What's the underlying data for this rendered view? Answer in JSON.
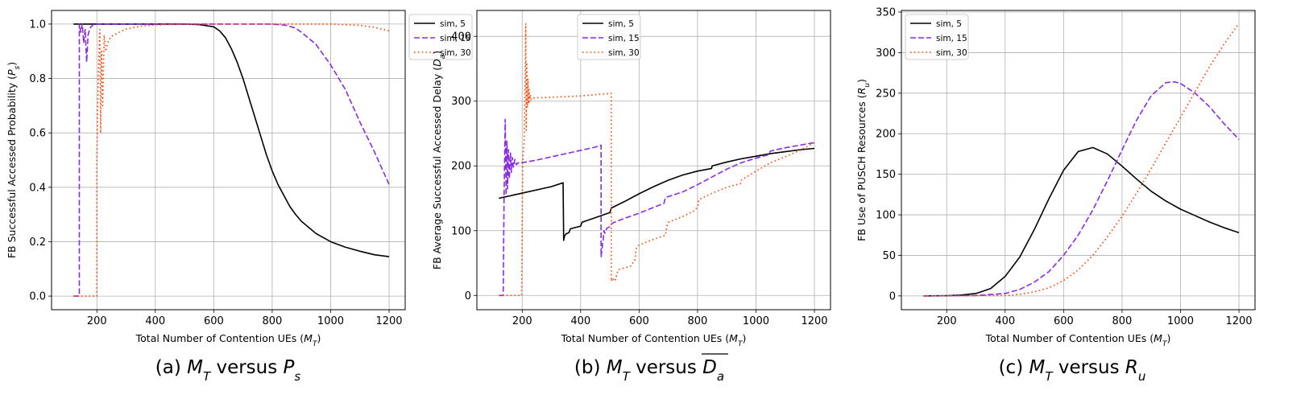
{
  "colors": {
    "sim5": "#000000",
    "sim15": "#8a2be2",
    "sim30": "#ff4500",
    "grid": "#b0b0b0"
  },
  "chart_data": [
    {
      "type": "line",
      "caption": "(a) M_T versus P_s",
      "caption_parts": {
        "prefix": "(a) ",
        "v1": "M",
        "s1": "T",
        "mid": " versus ",
        "v2": "P",
        "s2": "s"
      },
      "xlabel": "Total Number of Contention UEs (M_T)",
      "xlabel_parts": {
        "text": "Total Number of Contention UEs (",
        "v": "M",
        "s": "T",
        "end": ")"
      },
      "ylabel": "FB Successful Accessed Probability (P_s)",
      "ylabel_parts": {
        "text": "FB Successful Accessed Probability (",
        "v": "P",
        "s": "s",
        "end": ")"
      },
      "xlim": [
        45,
        1255
      ],
      "ylim": [
        -0.05,
        1.05
      ],
      "xticks": [
        200,
        400,
        600,
        800,
        1000,
        1200
      ],
      "xtick_labels": [
        "200",
        "400",
        "600",
        "800",
        "1000",
        "1200"
      ],
      "yticks": [
        0.0,
        0.2,
        0.4,
        0.6,
        0.8,
        1.0
      ],
      "ytick_labels": [
        "0.0",
        "0.2",
        "0.4",
        "0.6",
        "0.8",
        "1.0"
      ],
      "grid": true,
      "legend": "top-right",
      "series": [
        {
          "name": "sim, 5",
          "style": "solid",
          "x": [
            120,
            200,
            300,
            400,
            500,
            550,
            600,
            620,
            640,
            660,
            680,
            700,
            720,
            740,
            760,
            780,
            800,
            820,
            840,
            860,
            880,
            900,
            950,
            1000,
            1050,
            1100,
            1150,
            1200
          ],
          "y": [
            1.0,
            1.0,
            1.0,
            1.0,
            1.0,
            0.998,
            0.99,
            0.975,
            0.95,
            0.91,
            0.86,
            0.8,
            0.73,
            0.66,
            0.59,
            0.52,
            0.46,
            0.41,
            0.37,
            0.33,
            0.3,
            0.275,
            0.23,
            0.2,
            0.18,
            0.165,
            0.152,
            0.145
          ]
        },
        {
          "name": "sim, 15",
          "style": "dashed",
          "x": [
            120,
            140,
            140,
            145,
            150,
            155,
            160,
            165,
            170,
            175,
            180,
            190,
            200,
            300,
            500,
            700,
            800,
            850,
            880,
            900,
            950,
            1000,
            1050,
            1100,
            1150,
            1200
          ],
          "y": [
            0.0,
            0.0,
            1.0,
            0.97,
            1.0,
            0.93,
            0.98,
            0.86,
            0.96,
            0.98,
            0.99,
            1.0,
            1.0,
            1.0,
            1.0,
            1.0,
            1.0,
            0.995,
            0.985,
            0.97,
            0.925,
            0.85,
            0.76,
            0.64,
            0.53,
            0.41
          ]
        },
        {
          "name": "sim, 30",
          "style": "dotted",
          "x": [
            120,
            200,
            200,
            205,
            210,
            213,
            216,
            220,
            225,
            230,
            240,
            250,
            260,
            280,
            300,
            350,
            400,
            500,
            600,
            800,
            1000,
            1100,
            1150,
            1200
          ],
          "y": [
            0.0,
            0.0,
            0.5,
            0.82,
            0.98,
            0.6,
            0.9,
            0.7,
            0.96,
            0.9,
            0.94,
            0.955,
            0.96,
            0.972,
            0.982,
            0.992,
            0.997,
            0.999,
            1.0,
            1.0,
            1.0,
            0.995,
            0.988,
            0.975
          ]
        }
      ]
    },
    {
      "type": "line",
      "caption": "(b) M_T versus D_a",
      "caption_parts": {
        "prefix": "(b) ",
        "v1": "M",
        "s1": "T",
        "mid": " versus ",
        "v2": "D",
        "s2": "a"
      },
      "xlabel": "Total Number of Contention UEs (M_T)",
      "xlabel_parts": {
        "text": "Total Number of Contention UEs (",
        "v": "M",
        "s": "T",
        "end": ")"
      },
      "ylabel": "FB Average Successful Accessed Delay (D_a)",
      "ylabel_parts": {
        "text": "FB Average Successful Accessed Delay (",
        "v": "D",
        "s": "a",
        "end": ")"
      },
      "xlim": [
        45,
        1255
      ],
      "ylim": [
        -22,
        440
      ],
      "xticks": [
        200,
        400,
        600,
        800,
        1000,
        1200
      ],
      "xtick_labels": [
        "200",
        "400",
        "600",
        "800",
        "1000",
        "1200"
      ],
      "yticks": [
        0,
        100,
        200,
        300,
        400
      ],
      "ytick_labels": [
        "0",
        "100",
        "200",
        "300",
        "400"
      ],
      "grid": true,
      "legend": "upper-center",
      "series": [
        {
          "name": "sim, 5",
          "style": "solid",
          "x": [
            120,
            200,
            300,
            340,
            342,
            345,
            350,
            360,
            365,
            400,
            405,
            450,
            500,
            505,
            550,
            600,
            650,
            700,
            750,
            800,
            848,
            850,
            900,
            950,
            1000,
            1050,
            1100,
            1150,
            1200
          ],
          "y": [
            150,
            158,
            168,
            174,
            85,
            92,
            95,
            97,
            103,
            107,
            113,
            120,
            128,
            135,
            145,
            157,
            168,
            178,
            186,
            192,
            196,
            200,
            206,
            211,
            215,
            219,
            222,
            225,
            227
          ]
        },
        {
          "name": "sim, 15",
          "style": "dashed",
          "x": [
            120,
            135,
            138,
            142,
            145,
            148,
            150,
            153,
            156,
            160,
            163,
            166,
            170,
            175,
            180,
            190,
            200,
            250,
            300,
            350,
            400,
            450,
            470,
            470,
            475,
            478,
            480,
            483,
            490,
            500,
            505,
            510,
            550,
            600,
            650,
            685,
            690,
            750,
            800,
            850,
            900,
            950,
            1000,
            1040,
            1050,
            1100,
            1150,
            1200
          ],
          "y": [
            0,
            0,
            150,
            272,
            155,
            238,
            165,
            225,
            180,
            220,
            190,
            213,
            198,
            210,
            202,
            206,
            205,
            209,
            214,
            219,
            224,
            229,
            232,
            60,
            78,
            90,
            100,
            96,
            104,
            106,
            110,
            112,
            119,
            127,
            136,
            142,
            151,
            160,
            171,
            183,
            195,
            205,
            212,
            217,
            223,
            228,
            232,
            236
          ]
        },
        {
          "name": "sim, 30",
          "style": "dotted",
          "x": [
            120,
            198,
            202,
            207,
            210,
            212,
            214,
            216,
            218,
            220,
            222,
            224,
            226,
            228,
            230,
            235,
            240,
            300,
            400,
            505,
            505,
            510,
            515,
            520,
            525,
            530,
            570,
            580,
            585,
            590,
            595,
            600,
            640,
            690,
            695,
            700,
            750,
            790,
            800,
            805,
            850,
            900,
            948,
            950,
            1000,
            1050,
            1100,
            1150,
            1200
          ],
          "y": [
            0,
            0,
            208,
            240,
            330,
            420,
            255,
            360,
            290,
            335,
            296,
            318,
            300,
            310,
            303,
            306,
            305,
            306,
            308,
            312,
            22,
            27,
            22,
            25,
            35,
            40,
            45,
            51,
            53,
            72,
            75,
            78,
            85,
            93,
            107,
            113,
            122,
            131,
            137,
            148,
            158,
            167,
            173,
            178,
            192,
            205,
            214,
            224,
            236
          ]
        }
      ]
    },
    {
      "type": "line",
      "caption": "(c) M_T versus R_u",
      "caption_parts": {
        "prefix": "(c) ",
        "v1": "M",
        "s1": "T",
        "mid": " versus ",
        "v2": "R",
        "s2": "u"
      },
      "xlabel": "Total Number of Contention UEs (M_T)",
      "xlabel_parts": {
        "text": "Total Number of Contention UEs (",
        "v": "M",
        "s": "T",
        "end": ")"
      },
      "ylabel": "FB Use of PUSCH Resources (R_u)",
      "ylabel_parts": {
        "text": "FB Use of PUSCH Resources (",
        "v": "R",
        "s": "u",
        "end": ")"
      },
      "xlim": [
        45,
        1255
      ],
      "ylim": [
        -17,
        352
      ],
      "xticks": [
        200,
        400,
        600,
        800,
        1000,
        1200
      ],
      "xtick_labels": [
        "200",
        "400",
        "600",
        "800",
        "1000",
        "1200"
      ],
      "yticks": [
        0,
        50,
        100,
        150,
        200,
        250,
        300,
        350
      ],
      "ytick_labels": [
        "0",
        "50",
        "100",
        "150",
        "200",
        "250",
        "300",
        "350"
      ],
      "grid": true,
      "legend": "top-left",
      "series": [
        {
          "name": "sim, 5",
          "style": "solid",
          "x": [
            120,
            200,
            250,
            300,
            350,
            400,
            450,
            500,
            550,
            600,
            650,
            700,
            750,
            800,
            850,
            900,
            950,
            1000,
            1050,
            1100,
            1150,
            1200
          ],
          "y": [
            0,
            0.3,
            1,
            3,
            9,
            24,
            48,
            82,
            120,
            155,
            178,
            183,
            175,
            160,
            144,
            129,
            117,
            107,
            99,
            91,
            84,
            78
          ]
        },
        {
          "name": "sim, 15",
          "style": "dashed",
          "x": [
            120,
            300,
            400,
            450,
            500,
            550,
            600,
            650,
            700,
            750,
            800,
            850,
            900,
            950,
            980,
            1000,
            1050,
            1100,
            1150,
            1200
          ],
          "y": [
            0,
            0.5,
            3,
            8,
            17,
            30,
            50,
            75,
            106,
            142,
            180,
            217,
            247,
            263,
            264,
            262,
            250,
            233,
            212,
            193
          ]
        },
        {
          "name": "sim, 30",
          "style": "dotted",
          "x": [
            120,
            400,
            450,
            500,
            550,
            600,
            650,
            700,
            750,
            800,
            850,
            900,
            950,
            1000,
            1050,
            1100,
            1150,
            1200
          ],
          "y": [
            0,
            0.5,
            2,
            5,
            10,
            19,
            32,
            50,
            73,
            98,
            127,
            157,
            189,
            220,
            252,
            283,
            311,
            336
          ]
        }
      ]
    }
  ]
}
